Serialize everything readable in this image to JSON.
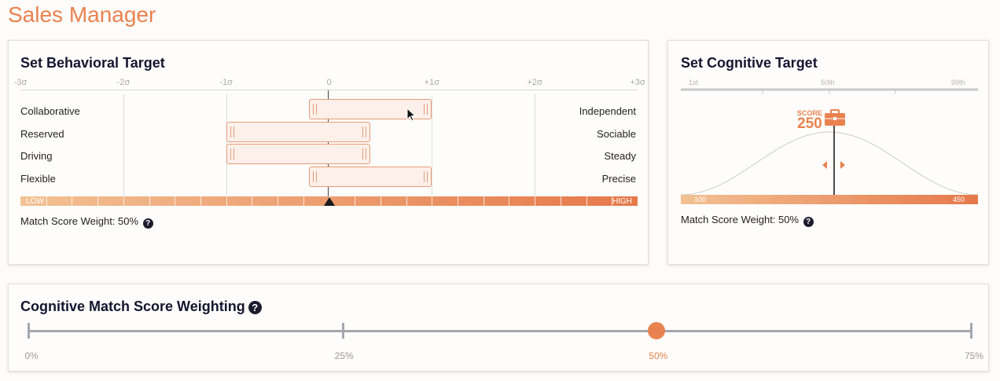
{
  "page": {
    "title": "Sales Manager"
  },
  "behavioral": {
    "title": "Set Behavioral Target",
    "sigma_labels": [
      "-3σ",
      "-2σ",
      "-1σ",
      "0",
      "+1σ",
      "+2σ",
      "+3σ"
    ],
    "traits": [
      {
        "left": "Collaborative",
        "right": "Independent",
        "range": [
          0.0,
          0.8
        ]
      },
      {
        "left": "Reserved",
        "right": "Sociable",
        "range": [
          -0.8,
          0.2
        ]
      },
      {
        "left": "Driving",
        "right": "Steady",
        "range": [
          -0.8,
          0.2
        ]
      },
      {
        "left": "Flexible",
        "right": "Precise",
        "range": [
          0.0,
          0.8
        ]
      }
    ],
    "scale_low": "LOW",
    "scale_high": "HIGH",
    "marker_sigma": 0,
    "weight_label": "Match Score Weight: 50%",
    "help_glyph": "?"
  },
  "cognitive": {
    "title": "Set Cognitive Target",
    "percentile_labels": [
      "1st",
      "50th",
      "99th"
    ],
    "score_label": "SCORE",
    "score_value": "250",
    "score_min": "100",
    "score_max": "450",
    "score_numeric": 250,
    "range_min": 100,
    "range_max": 450,
    "icon": "briefcase-icon",
    "weight_label": "Match Score Weight: 50%",
    "help_glyph": "?"
  },
  "weighting": {
    "title": "Cognitive Match Score Weighting",
    "help_glyph": "?",
    "stops": [
      "0%",
      "25%",
      "50%",
      "75%"
    ],
    "selected_index": 2
  },
  "colors": {
    "accent": "#e9824f",
    "bar_fill": "#fdf0ea",
    "bar_border": "#e49c77"
  }
}
